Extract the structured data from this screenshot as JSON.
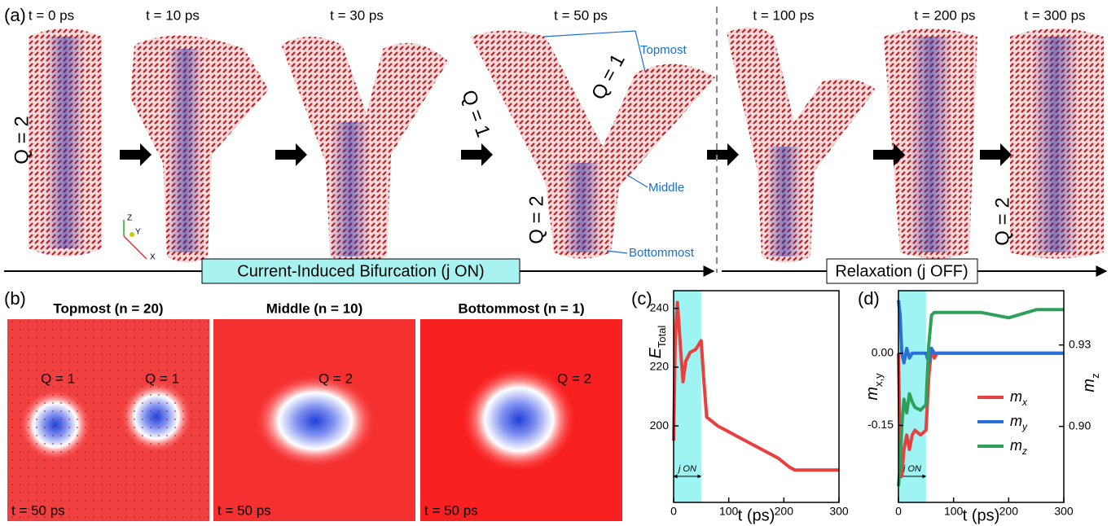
{
  "panel_a": {
    "label": "(a)",
    "times": [
      "t = 0 ps",
      "t = 10 ps",
      "t = 30 ps",
      "t = 50 ps",
      "t = 100 ps",
      "t = 200 ps",
      "t = 300 ps"
    ],
    "q_labels": [
      "Q = 2",
      "Q = 1",
      "Q = 1",
      "Q = 2",
      "Q = 2"
    ],
    "callouts": [
      "Topmost",
      "Middle",
      "Bottommost"
    ],
    "triad": [
      "Z",
      "Y",
      "X"
    ],
    "phases": [
      "Current-Induced Bifurcation (j ON)",
      "Relaxation (j OFF)"
    ]
  },
  "panel_b": {
    "label": "(b)",
    "maps": [
      {
        "title": "Topmost (n = 20)",
        "q": [
          "Q = 1",
          "Q = 1"
        ],
        "time": "t = 50 ps"
      },
      {
        "title": "Middle (n = 10)",
        "q": [
          "Q = 2"
        ],
        "time": "t = 50 ps"
      },
      {
        "title": "Bottommost (n = 1)",
        "q": [
          "Q = 2"
        ],
        "time": "t = 50 ps"
      }
    ]
  },
  "chart_data": [
    {
      "type": "line",
      "label": "(c)",
      "xlabel": "t (ps)",
      "ylabel": {
        "main": "E",
        "sub": "Total"
      },
      "xlim": [
        0,
        300
      ],
      "xticks": [
        0,
        100,
        200,
        300
      ],
      "ylim": [
        174,
        246
      ],
      "yticks": [
        200,
        220,
        240
      ],
      "shade": [
        0,
        50
      ],
      "shade_label": "j ON",
      "shade_color": "#9ef3f3",
      "x": [
        0,
        3,
        7,
        12,
        17,
        22,
        30,
        40,
        50,
        55,
        60,
        80,
        100,
        130,
        160,
        190,
        210,
        220,
        250,
        300
      ],
      "series": [
        {
          "color": "#e8403f",
          "values": [
            195,
            230,
            242,
            228,
            215,
            222,
            225,
            226,
            229,
            215,
            203,
            200,
            198,
            195,
            192,
            189,
            186,
            185,
            185,
            185
          ]
        }
      ]
    },
    {
      "type": "line",
      "label": "(d)",
      "xlabel": "t (ps)",
      "ylabel": {
        "main": "m",
        "sub": "x,y"
      },
      "y2label": {
        "main": "m",
        "sub": "z"
      },
      "xlim": [
        0,
        300
      ],
      "xticks": [
        0,
        100,
        200,
        300
      ],
      "ylim": [
        -0.31,
        0.13
      ],
      "yticks": [
        {
          "value": -0.15,
          "label": "-0.15"
        },
        {
          "value": 0,
          "label": "0.00"
        }
      ],
      "y2lim": [
        0.872,
        0.95
      ],
      "y2ticks": [
        {
          "value": 0.9,
          "label": "0.90"
        },
        {
          "value": 0.93,
          "label": "0.93"
        }
      ],
      "shade": [
        0,
        50
      ],
      "shade_label": "j ON",
      "shade_color": "#9ef3f3",
      "x": [
        0,
        3,
        6,
        10,
        15,
        20,
        25,
        30,
        40,
        50,
        55,
        60,
        65,
        70,
        100,
        150,
        200,
        250,
        300
      ],
      "series": [
        {
          "name": "m",
          "name_sub": "x",
          "color": "#e8403f",
          "values": [
            0.0,
            -0.2,
            -0.255,
            -0.2,
            -0.17,
            -0.2,
            -0.17,
            -0.16,
            -0.17,
            -0.16,
            -0.05,
            0.01,
            -0.01,
            0.0,
            0.0,
            0.0,
            0.0,
            0.0,
            0.0
          ]
        },
        {
          "name": "m",
          "name_sub": "y",
          "color": "#2a6fd6",
          "values": [
            0.11,
            0.08,
            0.0,
            -0.02,
            0.01,
            -0.01,
            0.0,
            0.0,
            0.0,
            0.0,
            -0.02,
            0.01,
            0.0,
            0.0,
            0.0,
            0.0,
            0.0,
            0.0,
            0.0
          ]
        },
        {
          "name": "m",
          "name_sub": "z",
          "color": "#2ea05a",
          "axis": "y2",
          "values": [
            0.878,
            0.885,
            0.9,
            0.91,
            0.905,
            0.912,
            0.909,
            0.907,
            0.906,
            0.908,
            0.93,
            0.941,
            0.942,
            0.942,
            0.942,
            0.942,
            0.94,
            0.943,
            0.943
          ]
        }
      ]
    }
  ]
}
